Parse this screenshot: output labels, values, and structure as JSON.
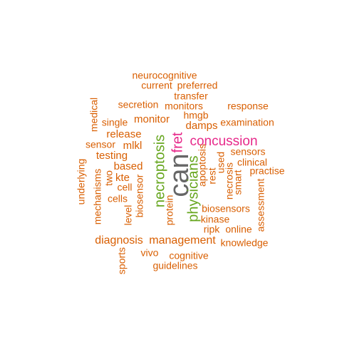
{
  "palette": {
    "orange": "#d95f02",
    "green": "#1b9e77",
    "magenta": "#e7298a",
    "gray": "#666666",
    "olive": "#66a61e"
  },
  "words": [
    {
      "text": "can",
      "weight": 5,
      "color": "#666666"
    },
    {
      "text": "fret",
      "weight": 3,
      "color": "#e7298a"
    },
    {
      "text": "concussion",
      "weight": 3,
      "color": "#e7298a"
    },
    {
      "text": "necroptosis",
      "weight": 3,
      "color": "#66a61e"
    },
    {
      "text": "physicians",
      "weight": 3,
      "color": "#66a61e"
    },
    {
      "text": "neurocognitive",
      "weight": 1,
      "color": "#d95f02"
    },
    {
      "text": "current",
      "weight": 1,
      "color": "#d95f02"
    },
    {
      "text": "preferred",
      "weight": 1,
      "color": "#d95f02"
    },
    {
      "text": "transfer",
      "weight": 1,
      "color": "#d95f02"
    },
    {
      "text": "secretion",
      "weight": 1,
      "color": "#d95f02"
    },
    {
      "text": "monitors",
      "weight": 1,
      "color": "#d95f02"
    },
    {
      "text": "response",
      "weight": 1,
      "color": "#d95f02"
    },
    {
      "text": "medical",
      "weight": 1,
      "color": "#d95f02"
    },
    {
      "text": "hmgb",
      "weight": 1,
      "color": "#d95f02"
    },
    {
      "text": "single",
      "weight": 1,
      "color": "#d95f02"
    },
    {
      "text": "monitor",
      "weight": 2,
      "color": "#d95f02"
    },
    {
      "text": "examination",
      "weight": 1,
      "color": "#d95f02"
    },
    {
      "text": "damps",
      "weight": 2,
      "color": "#d95f02"
    },
    {
      "text": "release",
      "weight": 2,
      "color": "#d95f02"
    },
    {
      "text": "sensor",
      "weight": 1,
      "color": "#d95f02"
    },
    {
      "text": "mlkl",
      "weight": 2,
      "color": "#d95f02"
    },
    {
      "text": "sensors",
      "weight": 1,
      "color": "#d95f02"
    },
    {
      "text": "testing",
      "weight": 2,
      "color": "#d95f02"
    },
    {
      "text": "clinical",
      "weight": 1,
      "color": "#d95f02"
    },
    {
      "text": "based",
      "weight": 2,
      "color": "#d95f02"
    },
    {
      "text": "practise",
      "weight": 1,
      "color": "#d95f02"
    },
    {
      "text": "underlying",
      "weight": 1,
      "color": "#d95f02"
    },
    {
      "text": "two",
      "weight": 1,
      "color": "#d95f02"
    },
    {
      "text": "kte",
      "weight": 2,
      "color": "#d95f02"
    },
    {
      "text": "cell",
      "weight": 1,
      "color": "#d95f02"
    },
    {
      "text": "cells",
      "weight": 1,
      "color": "#d95f02"
    },
    {
      "text": "mechanisms",
      "weight": 1,
      "color": "#d95f02"
    },
    {
      "text": "level",
      "weight": 1,
      "color": "#d95f02"
    },
    {
      "text": "biosensor",
      "weight": 1,
      "color": "#d95f02"
    },
    {
      "text": "protein",
      "weight": 1,
      "color": "#d95f02"
    },
    {
      "text": "apoptosis",
      "weight": 1,
      "color": "#d95f02"
    },
    {
      "text": "rest",
      "weight": 1,
      "color": "#d95f02"
    },
    {
      "text": "used",
      "weight": 1,
      "color": "#d95f02"
    },
    {
      "text": "necrosis",
      "weight": 1,
      "color": "#d95f02"
    },
    {
      "text": "smart",
      "weight": 1,
      "color": "#d95f02"
    },
    {
      "text": "assessment",
      "weight": 1,
      "color": "#d95f02"
    },
    {
      "text": "biosensors",
      "weight": 1,
      "color": "#d95f02"
    },
    {
      "text": "kinase",
      "weight": 1,
      "color": "#d95f02"
    },
    {
      "text": "ripk",
      "weight": 1,
      "color": "#d95f02"
    },
    {
      "text": "online",
      "weight": 1,
      "color": "#d95f02"
    },
    {
      "text": "diagnosis",
      "weight": 2,
      "color": "#d95f02"
    },
    {
      "text": "management",
      "weight": 2,
      "color": "#d95f02"
    },
    {
      "text": "knowledge",
      "weight": 1,
      "color": "#d95f02"
    },
    {
      "text": "sports",
      "weight": 1,
      "color": "#d95f02"
    },
    {
      "text": "vivo",
      "weight": 1,
      "color": "#d95f02"
    },
    {
      "text": "cognitive",
      "weight": 1,
      "color": "#d95f02"
    },
    {
      "text": "guidelines",
      "weight": 1,
      "color": "#d95f02"
    }
  ]
}
